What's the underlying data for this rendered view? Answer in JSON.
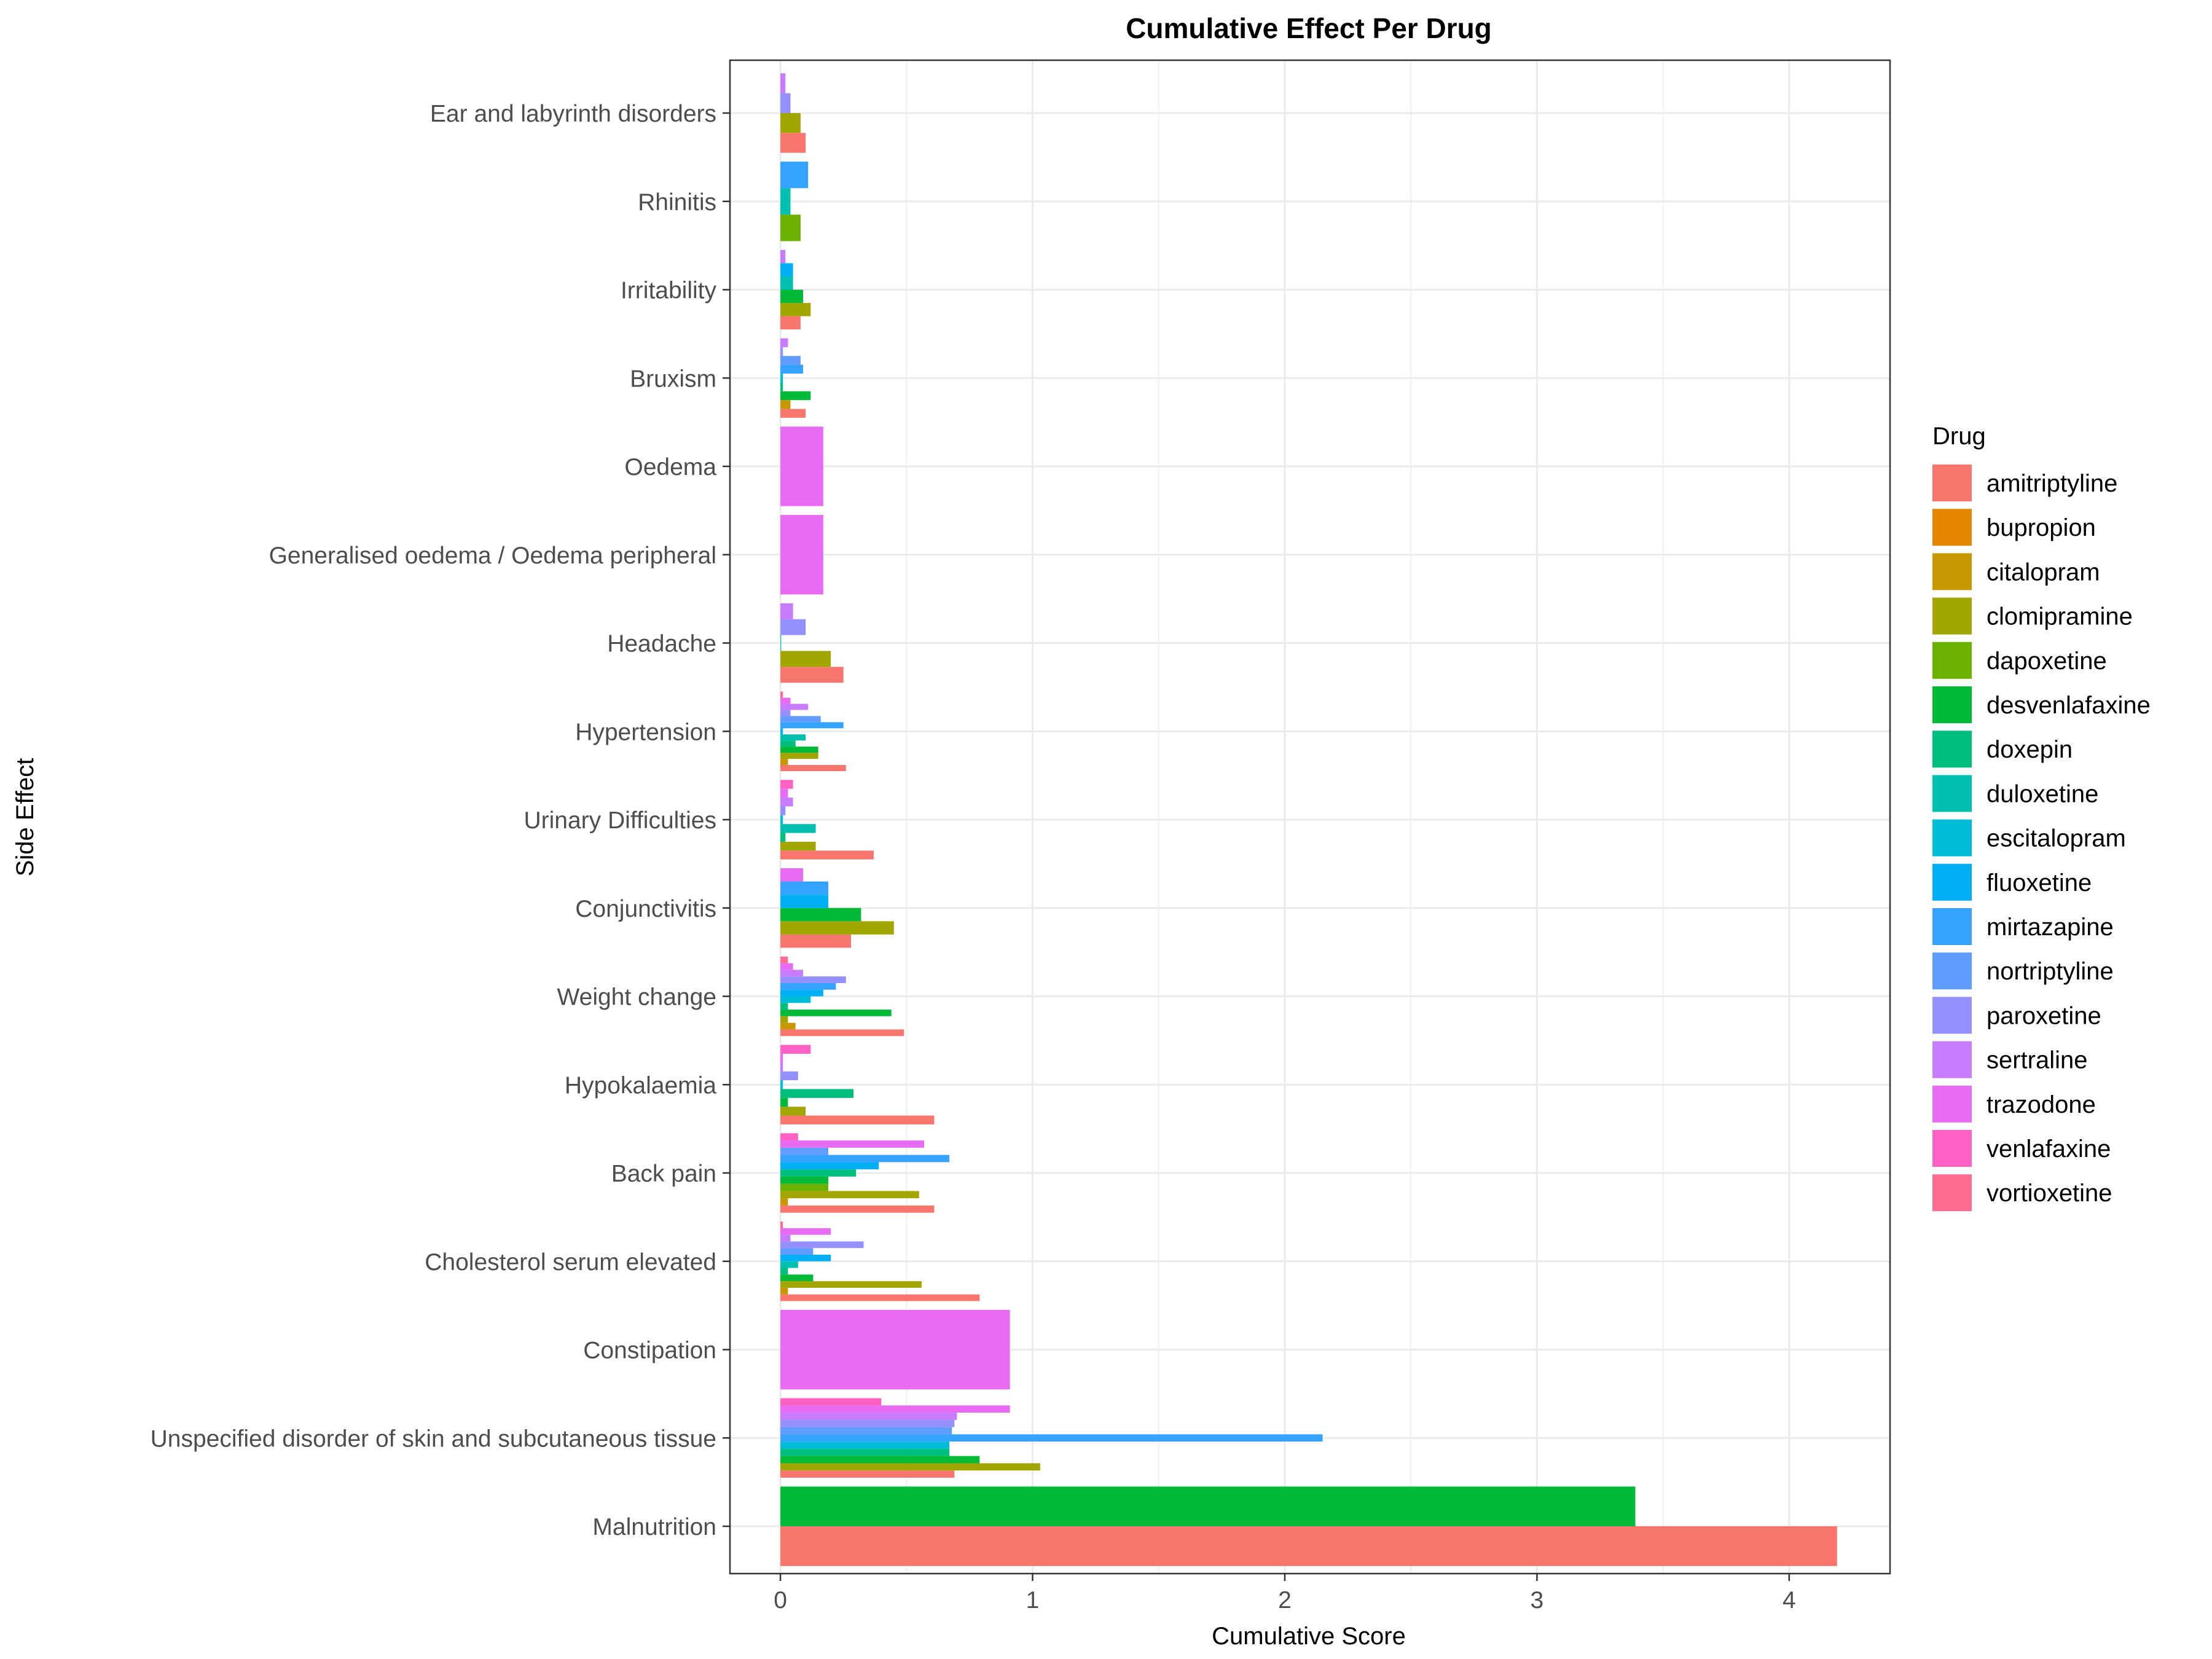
{
  "chart_data": {
    "type": "bar",
    "orientation": "horizontal",
    "title": "Cumulative Effect Per Drug",
    "xlabel": "Cumulative Score",
    "ylabel": "Side Effect",
    "xlim": [
      -0.2,
      4.4
    ],
    "xticks": [
      0,
      1,
      2,
      3,
      4
    ],
    "grid": true,
    "legend_position": "right",
    "legend_title": "Drug",
    "drugs": [
      {
        "name": "amitriptyline",
        "color": "#F8766D"
      },
      {
        "name": "bupropion",
        "color": "#E58700"
      },
      {
        "name": "citalopram",
        "color": "#C99800"
      },
      {
        "name": "clomipramine",
        "color": "#A3A500"
      },
      {
        "name": "dapoxetine",
        "color": "#6BB100"
      },
      {
        "name": "desvenlafaxine",
        "color": "#00BA38"
      },
      {
        "name": "doxepin",
        "color": "#00BF7D"
      },
      {
        "name": "duloxetine",
        "color": "#00C0AF"
      },
      {
        "name": "escitalopram",
        "color": "#00BCD8"
      },
      {
        "name": "fluoxetine",
        "color": "#00B0F6"
      },
      {
        "name": "mirtazapine",
        "color": "#35A2FF"
      },
      {
        "name": "nortriptyline",
        "color": "#619CFF"
      },
      {
        "name": "paroxetine",
        "color": "#9590FF"
      },
      {
        "name": "sertraline",
        "color": "#C77CFF"
      },
      {
        "name": "trazodone",
        "color": "#E76BF3"
      },
      {
        "name": "venlafaxine",
        "color": "#FF61C3"
      },
      {
        "name": "vortioxetine",
        "color": "#FF6C91"
      }
    ],
    "categories": [
      "Ear and labyrinth disorders",
      "Rhinitis",
      "Irritability",
      "Bruxism",
      "Oedema",
      "Generalised oedema / Oedema peripheral",
      "Headache",
      "Hypertension",
      "Urinary Difficulties",
      "Conjunctivitis",
      "Weight change",
      "Hypokalaemia",
      "Back pain",
      "Cholesterol serum elevated",
      "Constipation",
      "Unspecified disorder of skin and subcutaneous tissue",
      "Malnutrition"
    ],
    "series_by_category": [
      {
        "category": "Ear and labyrinth disorders",
        "bars": [
          {
            "drug": "amitriptyline",
            "value": 0.1
          },
          {
            "drug": "clomipramine",
            "value": 0.08
          },
          {
            "drug": "paroxetine",
            "value": 0.04
          },
          {
            "drug": "sertraline",
            "value": 0.02
          }
        ]
      },
      {
        "category": "Rhinitis",
        "bars": [
          {
            "drug": "dapoxetine",
            "value": 0.08
          },
          {
            "drug": "duloxetine",
            "value": 0.04
          },
          {
            "drug": "mirtazapine",
            "value": 0.11
          }
        ]
      },
      {
        "category": "Irritability",
        "bars": [
          {
            "drug": "amitriptyline",
            "value": 0.08
          },
          {
            "drug": "clomipramine",
            "value": 0.12
          },
          {
            "drug": "desvenlafaxine",
            "value": 0.09
          },
          {
            "drug": "duloxetine",
            "value": 0.05
          },
          {
            "drug": "fluoxetine",
            "value": 0.05
          },
          {
            "drug": "sertraline",
            "value": 0.02
          }
        ]
      },
      {
        "category": "Bruxism",
        "bars": [
          {
            "drug": "amitriptyline",
            "value": 0.1
          },
          {
            "drug": "citalopram",
            "value": 0.04
          },
          {
            "drug": "desvenlafaxine",
            "value": 0.12
          },
          {
            "drug": "doxepin",
            "value": 0.01
          },
          {
            "drug": "escitalopram",
            "value": 0.01
          },
          {
            "drug": "mirtazapine",
            "value": 0.09
          },
          {
            "drug": "nortriptyline",
            "value": 0.08
          },
          {
            "drug": "paroxetine",
            "value": 0.01
          },
          {
            "drug": "sertraline",
            "value": 0.03
          }
        ]
      },
      {
        "category": "Oedema",
        "bars": [
          {
            "drug": "trazodone",
            "value": 0.17
          }
        ]
      },
      {
        "category": "Generalised oedema / Oedema peripheral",
        "bars": [
          {
            "drug": "trazodone",
            "value": 0.17
          }
        ]
      },
      {
        "category": "Headache",
        "bars": [
          {
            "drug": "amitriptyline",
            "value": 0.25
          },
          {
            "drug": "clomipramine",
            "value": 0.2
          },
          {
            "drug": "duloxetine",
            "value": 0.003
          },
          {
            "drug": "paroxetine",
            "value": 0.1
          },
          {
            "drug": "sertraline",
            "value": 0.05
          }
        ]
      },
      {
        "category": "Hypertension",
        "bars": [
          {
            "drug": "amitriptyline",
            "value": 0.26
          },
          {
            "drug": "citalopram",
            "value": 0.03
          },
          {
            "drug": "clomipramine",
            "value": 0.15
          },
          {
            "drug": "desvenlafaxine",
            "value": 0.15
          },
          {
            "drug": "doxepin",
            "value": 0.06
          },
          {
            "drug": "duloxetine",
            "value": 0.1
          },
          {
            "drug": "fluoxetine",
            "value": 0.01
          },
          {
            "drug": "mirtazapine",
            "value": 0.25
          },
          {
            "drug": "nortriptyline",
            "value": 0.16
          },
          {
            "drug": "paroxetine",
            "value": 0.04
          },
          {
            "drug": "sertraline",
            "value": 0.11
          },
          {
            "drug": "trazodone",
            "value": 0.04
          },
          {
            "drug": "vortioxetine",
            "value": 0.01
          }
        ]
      },
      {
        "category": "Urinary Difficulties",
        "bars": [
          {
            "drug": "amitriptyline",
            "value": 0.37
          },
          {
            "drug": "clomipramine",
            "value": 0.14
          },
          {
            "drug": "doxepin",
            "value": 0.02
          },
          {
            "drug": "duloxetine",
            "value": 0.14
          },
          {
            "drug": "escitalopram",
            "value": 0.01
          },
          {
            "drug": "paroxetine",
            "value": 0.02
          },
          {
            "drug": "sertraline",
            "value": 0.05
          },
          {
            "drug": "trazodone",
            "value": 0.03
          },
          {
            "drug": "venlafaxine",
            "value": 0.05
          }
        ]
      },
      {
        "category": "Conjunctivitis",
        "bars": [
          {
            "drug": "amitriptyline",
            "value": 0.28
          },
          {
            "drug": "clomipramine",
            "value": 0.45
          },
          {
            "drug": "desvenlafaxine",
            "value": 0.32
          },
          {
            "drug": "fluoxetine",
            "value": 0.19
          },
          {
            "drug": "mirtazapine",
            "value": 0.19
          },
          {
            "drug": "trazodone",
            "value": 0.09
          }
        ]
      },
      {
        "category": "Weight change",
        "bars": [
          {
            "drug": "amitriptyline",
            "value": 0.49
          },
          {
            "drug": "citalopram",
            "value": 0.06
          },
          {
            "drug": "clomipramine",
            "value": 0.03
          },
          {
            "drug": "desvenlafaxine",
            "value": 0.44
          },
          {
            "drug": "doxepin",
            "value": 0.03
          },
          {
            "drug": "escitalopram",
            "value": 0.12
          },
          {
            "drug": "fluoxetine",
            "value": 0.17
          },
          {
            "drug": "mirtazapine",
            "value": 0.22
          },
          {
            "drug": "paroxetine",
            "value": 0.26
          },
          {
            "drug": "sertraline",
            "value": 0.09
          },
          {
            "drug": "trazodone",
            "value": 0.05
          },
          {
            "drug": "vortioxetine",
            "value": 0.03
          }
        ]
      },
      {
        "category": "Hypokalaemia",
        "bars": [
          {
            "drug": "amitriptyline",
            "value": 0.61
          },
          {
            "drug": "clomipramine",
            "value": 0.1
          },
          {
            "drug": "desvenlafaxine",
            "value": 0.03
          },
          {
            "drug": "doxepin",
            "value": 0.29
          },
          {
            "drug": "escitalopram",
            "value": 0.01
          },
          {
            "drug": "paroxetine",
            "value": 0.07
          },
          {
            "drug": "sertraline",
            "value": 0.01
          },
          {
            "drug": "trazodone",
            "value": 0.01
          },
          {
            "drug": "venlafaxine",
            "value": 0.12
          }
        ]
      },
      {
        "category": "Back pain",
        "bars": [
          {
            "drug": "amitriptyline",
            "value": 0.61
          },
          {
            "drug": "citalopram",
            "value": 0.03
          },
          {
            "drug": "clomipramine",
            "value": 0.55
          },
          {
            "drug": "dapoxetine",
            "value": 0.19
          },
          {
            "drug": "desvenlafaxine",
            "value": 0.19
          },
          {
            "drug": "doxepin",
            "value": 0.3
          },
          {
            "drug": "fluoxetine",
            "value": 0.39
          },
          {
            "drug": "mirtazapine",
            "value": 0.67
          },
          {
            "drug": "nortriptyline",
            "value": 0.19
          },
          {
            "drug": "trazodone",
            "value": 0.57
          },
          {
            "drug": "venlafaxine",
            "value": 0.07
          }
        ]
      },
      {
        "category": "Cholesterol serum elevated",
        "bars": [
          {
            "drug": "amitriptyline",
            "value": 0.79
          },
          {
            "drug": "citalopram",
            "value": 0.03
          },
          {
            "drug": "clomipramine",
            "value": 0.56
          },
          {
            "drug": "desvenlafaxine",
            "value": 0.13
          },
          {
            "drug": "doxepin",
            "value": 0.03
          },
          {
            "drug": "duloxetine",
            "value": 0.07
          },
          {
            "drug": "fluoxetine",
            "value": 0.2
          },
          {
            "drug": "nortriptyline",
            "value": 0.13
          },
          {
            "drug": "paroxetine",
            "value": 0.33
          },
          {
            "drug": "sertraline",
            "value": 0.04
          },
          {
            "drug": "trazodone",
            "value": 0.2
          },
          {
            "drug": "vortioxetine",
            "value": 0.01
          }
        ]
      },
      {
        "category": "Constipation",
        "bars": [
          {
            "drug": "trazodone",
            "value": 0.91
          }
        ]
      },
      {
        "category": "Unspecified disorder of skin and subcutaneous tissue",
        "bars": [
          {
            "drug": "amitriptyline",
            "value": 0.69
          },
          {
            "drug": "clomipramine",
            "value": 1.03
          },
          {
            "drug": "desvenlafaxine",
            "value": 0.79
          },
          {
            "drug": "doxepin",
            "value": 0.67
          },
          {
            "drug": "escitalopram",
            "value": 0.67
          },
          {
            "drug": "mirtazapine",
            "value": 2.15
          },
          {
            "drug": "nortriptyline",
            "value": 0.68
          },
          {
            "drug": "paroxetine",
            "value": 0.69
          },
          {
            "drug": "sertraline",
            "value": 0.7
          },
          {
            "drug": "trazodone",
            "value": 0.91
          },
          {
            "drug": "venlafaxine",
            "value": 0.4
          }
        ]
      },
      {
        "category": "Malnutrition",
        "bars": [
          {
            "drug": "amitriptyline",
            "value": 4.19
          },
          {
            "drug": "desvenlafaxine",
            "value": 3.39
          }
        ]
      }
    ]
  }
}
